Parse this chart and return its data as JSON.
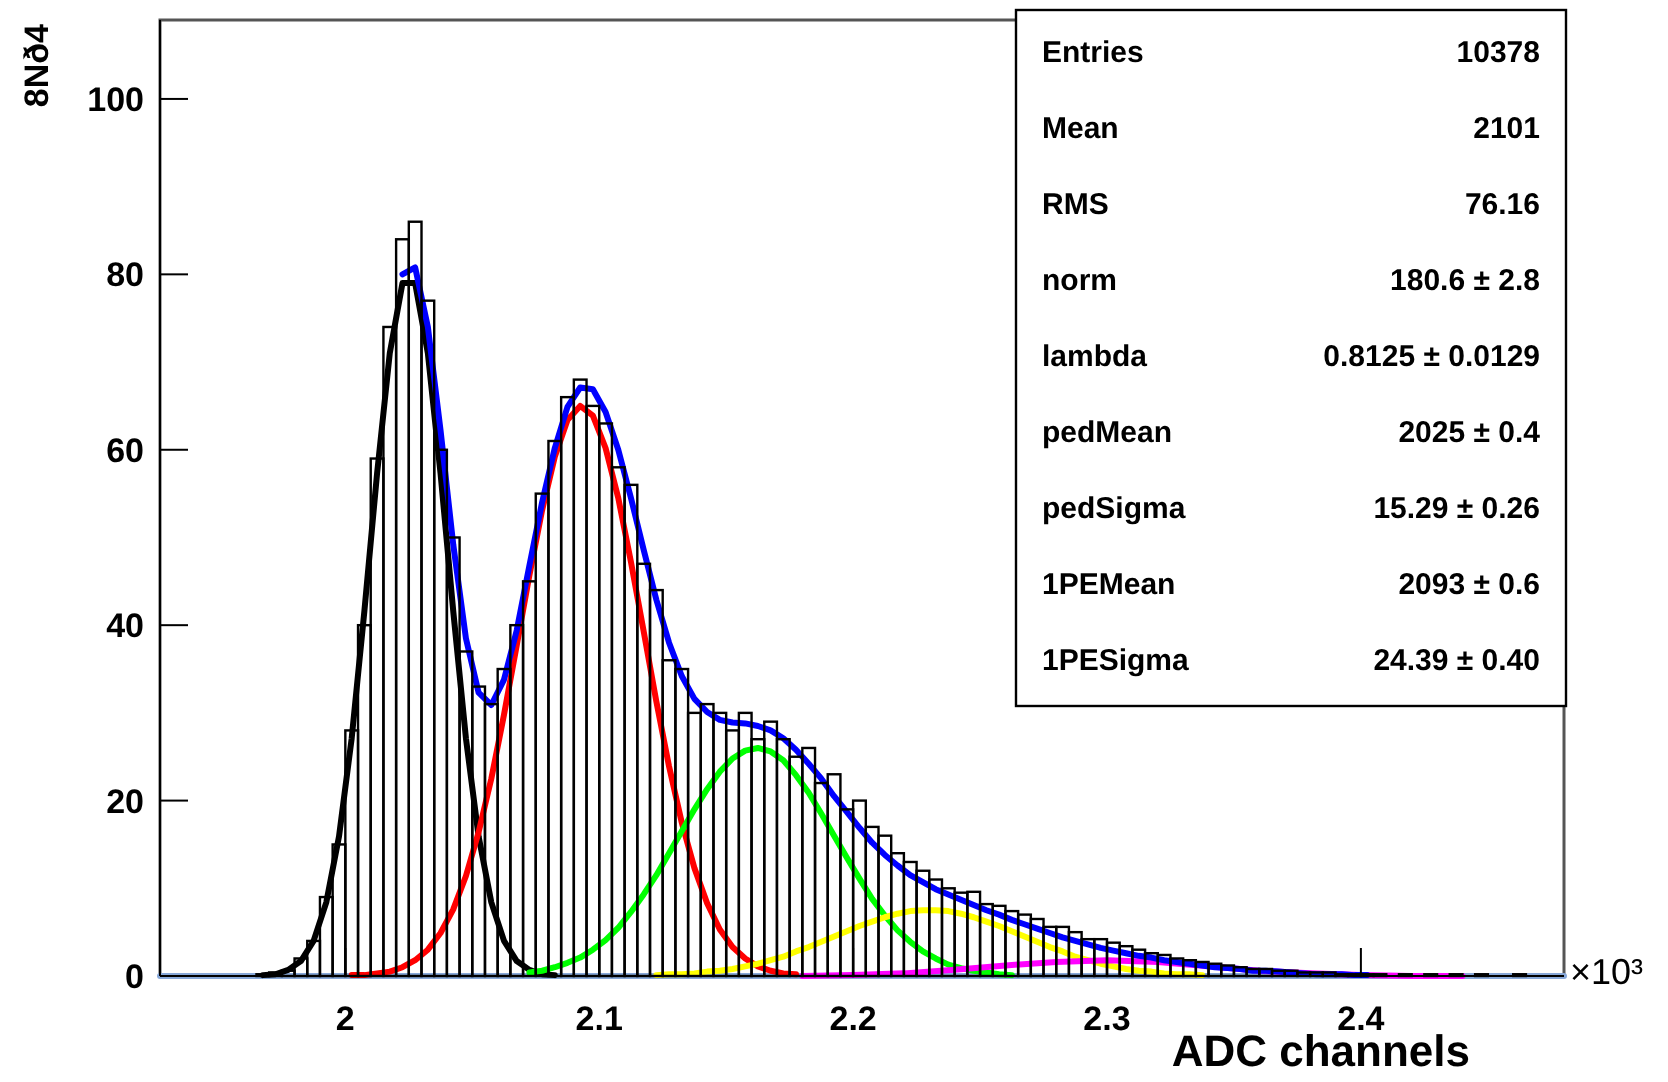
{
  "chart_data": {
    "type": "histogram",
    "xlabel": "ADC channels",
    "ylabel": "8Nð4",
    "bins": [
      1.955,
      1.96,
      1.965,
      1.97,
      1.975,
      1.98,
      1.985,
      1.99,
      1.995,
      2.0,
      2.005,
      2.01,
      2.015,
      2.02,
      2.025,
      2.03,
      2.035,
      2.04,
      2.045,
      2.05,
      2.055,
      2.06,
      2.065,
      2.07,
      2.075,
      2.08,
      2.085,
      2.09,
      2.095,
      2.1,
      2.105,
      2.11,
      2.115,
      2.12,
      2.125,
      2.13,
      2.135,
      2.14,
      2.145,
      2.15,
      2.155,
      2.16,
      2.165,
      2.17,
      2.175,
      2.18,
      2.185,
      2.19,
      2.195,
      2.2,
      2.205,
      2.21,
      2.215,
      2.22,
      2.225,
      2.23,
      2.235,
      2.24,
      2.245,
      2.25,
      2.255,
      2.26,
      2.265,
      2.27,
      2.275,
      2.28,
      2.285,
      2.29,
      2.295,
      2.3,
      2.305,
      2.31,
      2.315,
      2.32,
      2.325,
      2.33,
      2.335,
      2.34,
      2.345,
      2.35,
      2.355,
      2.36,
      2.365,
      2.37,
      2.375,
      2.38,
      2.385,
      2.39,
      2.395,
      2.4,
      2.405,
      2.41,
      2.415,
      2.42,
      2.425,
      2.43,
      2.435,
      2.44,
      2.445,
      2.45,
      2.455,
      2.46,
      2.465,
      2.47,
      2.475
    ],
    "values": [
      0,
      0,
      0.2,
      0.4,
      0.6,
      2,
      4,
      9,
      15,
      28,
      40,
      59,
      74,
      84,
      86,
      77,
      60,
      50,
      37,
      33,
      31,
      35,
      40,
      45,
      55,
      61,
      66,
      68,
      65,
      63,
      58,
      56,
      47,
      44,
      36,
      35,
      30,
      31,
      30,
      28,
      30,
      27,
      29,
      27,
      25,
      26,
      22,
      23,
      19,
      20,
      17,
      16,
      14,
      13,
      12,
      11,
      10,
      9.5,
      9.6,
      8.2,
      8,
      7.4,
      7,
      6.5,
      5.6,
      5.6,
      5,
      4.2,
      4.2,
      3.8,
      3.4,
      3,
      2.6,
      2.4,
      2,
      1.8,
      1.6,
      1.4,
      1.2,
      1,
      0.8,
      0.8,
      0.6,
      0.6,
      0.4,
      0.4,
      0.4,
      0.2,
      0.2,
      0.2,
      0.2,
      0,
      0.2,
      0,
      0.2,
      0,
      0.2,
      0,
      0.2,
      0,
      0,
      0.2,
      0,
      0
    ],
    "color": "#000000",
    "series": [
      {
        "type": "line",
        "color": "#88a8d8",
        "x": [
          1.927,
          2.48
        ],
        "values": [
          0,
          0
        ]
      },
      {
        "type": "line",
        "color": "#000000",
        "x": [
          1.9675,
          1.9725,
          1.9775,
          1.9825,
          1.9875,
          1.9925,
          1.9975,
          2.0025,
          2.0075,
          2.0125,
          2.0175,
          2.0225,
          2.0275,
          2.0325,
          2.0375,
          2.0425,
          2.0475,
          2.0525,
          2.0575,
          2.0625,
          2.0675,
          2.0725,
          2.0775,
          2.0825
        ],
        "values": [
          0.1,
          0.2,
          0.7,
          1.7,
          4.0,
          8.4,
          15.9,
          27.1,
          41.6,
          57.3,
          71,
          79,
          79,
          71,
          57.3,
          41.6,
          27.1,
          15.9,
          8.4,
          4.0,
          1.7,
          0.7,
          0.2,
          0.1
        ]
      },
      {
        "type": "line",
        "color": "#ff0000",
        "x": [
          2.0025,
          2.0075,
          2.0125,
          2.0175,
          2.0225,
          2.0275,
          2.0325,
          2.0375,
          2.0425,
          2.0475,
          2.0525,
          2.0575,
          2.0625,
          2.0675,
          2.0725,
          2.0775,
          2.0825,
          2.0875,
          2.0925,
          2.0975,
          2.1025,
          2.1075,
          2.1125,
          2.1175,
          2.1225,
          2.1275,
          2.1325,
          2.1375,
          2.1425,
          2.1475,
          2.1525,
          2.1575,
          2.1625,
          2.1675,
          2.1725,
          2.1775
        ],
        "values": [
          0.1,
          0.1,
          0.3,
          0.5,
          1.0,
          1.8,
          3.0,
          4.9,
          7.6,
          11.4,
          16.4,
          22.5,
          29.8,
          37.7,
          45.7,
          53.1,
          59.2,
          63.4,
          65,
          63.9,
          60.2,
          54.5,
          47.2,
          39.3,
          31.3,
          23.9,
          17.5,
          12.3,
          8.3,
          5.3,
          3.3,
          2.0,
          1.1,
          0.6,
          0.3,
          0.2
        ]
      },
      {
        "type": "line",
        "color": "#00ff00",
        "x": [
          2.0725,
          2.0775,
          2.0825,
          2.0875,
          2.0925,
          2.0975,
          2.1025,
          2.1075,
          2.1125,
          2.1175,
          2.1225,
          2.1275,
          2.1325,
          2.1375,
          2.1425,
          2.1475,
          2.1525,
          2.1575,
          2.1625,
          2.1675,
          2.1725,
          2.1775,
          2.1825,
          2.1875,
          2.1925,
          2.1975,
          2.2025,
          2.2075,
          2.2125,
          2.2175,
          2.2225,
          2.2275,
          2.2325,
          2.2375,
          2.2425,
          2.2475,
          2.2525,
          2.2575,
          2.2625
        ],
        "values": [
          0.4,
          0.6,
          1.0,
          1.5,
          2.1,
          3.0,
          4.1,
          5.5,
          7.3,
          9.3,
          11.5,
          14.0,
          16.5,
          19.0,
          21.3,
          23.3,
          24.8,
          25.7,
          26,
          25.6,
          24.6,
          22.9,
          20.9,
          18.5,
          16.0,
          13.5,
          11.1,
          8.8,
          6.9,
          5.2,
          3.9,
          2.8,
          2.0,
          1.3,
          0.9,
          0.6,
          0.4,
          0.2,
          0.1
        ]
      },
      {
        "type": "line",
        "color": "#ffff00",
        "x": [
          2.1225,
          2.1275,
          2.1325,
          2.1375,
          2.1425,
          2.1475,
          2.1525,
          2.1575,
          2.1625,
          2.1675,
          2.1725,
          2.1775,
          2.1825,
          2.1875,
          2.1925,
          2.1975,
          2.2025,
          2.2075,
          2.2125,
          2.2175,
          2.2225,
          2.2275,
          2.2325,
          2.2375,
          2.2425,
          2.2475,
          2.2525,
          2.2575,
          2.2625,
          2.2675,
          2.2725,
          2.2775,
          2.2825,
          2.2875,
          2.2925,
          2.2975,
          2.3025,
          2.3075,
          2.3125,
          2.3175,
          2.3225,
          2.3275,
          2.3325,
          2.3375
        ],
        "values": [
          0.1,
          0.2,
          0.2,
          0.3,
          0.5,
          0.6,
          0.8,
          1.1,
          1.4,
          1.8,
          2.2,
          2.8,
          3.3,
          3.9,
          4.5,
          5.1,
          5.7,
          6.2,
          6.7,
          7.1,
          7.4,
          7.5,
          7.5,
          7.4,
          7.1,
          6.7,
          6.2,
          5.7,
          5.1,
          4.5,
          3.9,
          3.3,
          2.8,
          2.2,
          1.8,
          1.4,
          1.1,
          0.8,
          0.6,
          0.5,
          0.3,
          0.2,
          0.2,
          0.1
        ]
      },
      {
        "type": "line",
        "color": "#ff00ff",
        "x": [
          2.18,
          2.2,
          2.22,
          2.24,
          2.26,
          2.28,
          2.3,
          2.32,
          2.34,
          2.36,
          2.38,
          2.4,
          2.42,
          2.44
        ],
        "values": [
          0,
          0.1,
          0.3,
          0.7,
          1.2,
          1.6,
          1.8,
          1.6,
          1.1,
          0.6,
          0.3,
          0.1,
          0,
          0
        ]
      },
      {
        "type": "line",
        "color": "#0000ff",
        "x": [
          2.0225,
          2.0275,
          2.0325,
          2.0375,
          2.0425,
          2.0475,
          2.0525,
          2.0575,
          2.0625,
          2.0675,
          2.0725,
          2.0775,
          2.0825,
          2.0875,
          2.0925,
          2.0975,
          2.1025,
          2.1075,
          2.1125,
          2.1175,
          2.1225,
          2.1275,
          2.1325,
          2.1375,
          2.1425,
          2.1475,
          2.1525,
          2.1575,
          2.1625,
          2.1675,
          2.1725,
          2.1775,
          2.1825,
          2.1875,
          2.1925,
          2.1975,
          2.2025,
          2.2075,
          2.2125,
          2.2175,
          2.2225,
          2.2275,
          2.2325,
          2.2375,
          2.2425,
          2.2475,
          2.2525,
          2.2575,
          2.2625,
          2.2675,
          2.2725,
          2.2775,
          2.2825,
          2.2875,
          2.2925,
          2.2975,
          2.3025,
          2.3075,
          2.3125,
          2.3175,
          2.3225,
          2.3275,
          2.3325,
          2.3375,
          2.3425,
          2.3475,
          2.3525,
          2.3575,
          2.3625,
          2.3675,
          2.3725,
          2.3775,
          2.3825,
          2.3875,
          2.3925,
          2.3975,
          2.4025
        ],
        "values": [
          80,
          80.8,
          74,
          62.2,
          49.2,
          38.5,
          32.3,
          30.9,
          33.8,
          39.4,
          46.8,
          54.0,
          60.2,
          64.9,
          67.1,
          66.9,
          64.3,
          60.0,
          54.5,
          48.6,
          42.9,
          38.0,
          34.2,
          31.6,
          30.1,
          29.2,
          28.9,
          28.8,
          28.5,
          28.0,
          27.1,
          25.8,
          24.2,
          22.5,
          20.5,
          18.7,
          16.9,
          15.2,
          13.8,
          12.6,
          11.5,
          10.7,
          9.9,
          9.3,
          8.7,
          8.1,
          7.5,
          7.0,
          6.4,
          5.9,
          5.4,
          4.9,
          4.4,
          4.0,
          3.6,
          3.2,
          2.9,
          2.6,
          2.3,
          2.1,
          1.8,
          1.6,
          1.4,
          1.2,
          1.0,
          0.9,
          0.8,
          0.6,
          0.6,
          0.5,
          0.4,
          0.3,
          0.2,
          0.2,
          0.2,
          0.1,
          0.1
        ]
      }
    ],
    "xlim": [
      1.927,
      2.48
    ],
    "xticks": [
      2,
      2.1,
      2.2,
      2.3,
      2.4
    ],
    "ylim": [
      0,
      109
    ],
    "yticks": [
      0,
      20,
      40,
      60,
      80,
      100
    ],
    "annotations": [
      "×10³",
      "Entries",
      "10378",
      "Mean",
      "2101",
      "RMS",
      "76.16",
      "norm",
      "180.6 ± 2.8",
      "lambda",
      "0.8125 ± 0.0129",
      "pedMean",
      "2025 ± 0.4",
      "pedSigma",
      "15.29 ± 0.26",
      "1PEMean",
      "2093 ± 0.6",
      "1PESigma",
      "24.39 ± 0.40"
    ]
  }
}
